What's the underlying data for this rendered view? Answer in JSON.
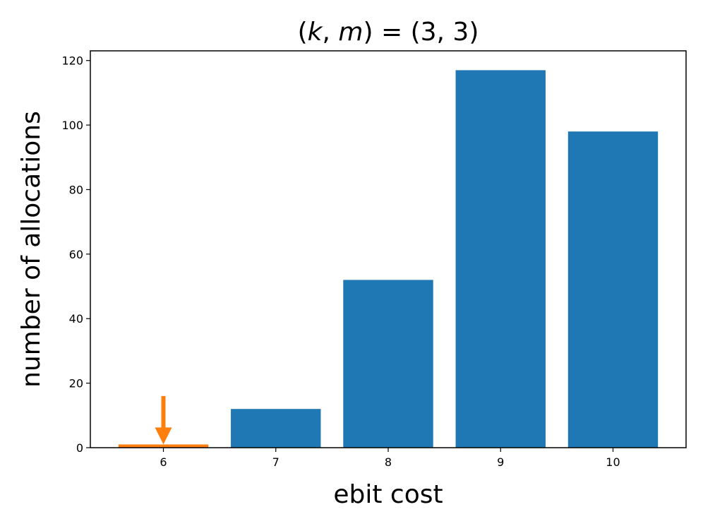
{
  "chart_data": {
    "type": "bar",
    "title": "(k, m) = (3, 3)",
    "xlabel": "ebit cost",
    "ylabel": "number of allocations",
    "categories": [
      "6",
      "7",
      "8",
      "9",
      "10"
    ],
    "values": [
      1,
      12,
      52,
      117,
      98
    ],
    "ylim": [
      0,
      123
    ],
    "yticks": [
      "0",
      "20",
      "40",
      "60",
      "80",
      "100",
      "120"
    ],
    "grid": false,
    "colors": {
      "bar": "#1f77b4",
      "highlight": "#ff7f0e"
    },
    "highlight": {
      "category": "6",
      "marker": "down-arrow",
      "arrow_from": 16,
      "arrow_to": 1
    }
  }
}
